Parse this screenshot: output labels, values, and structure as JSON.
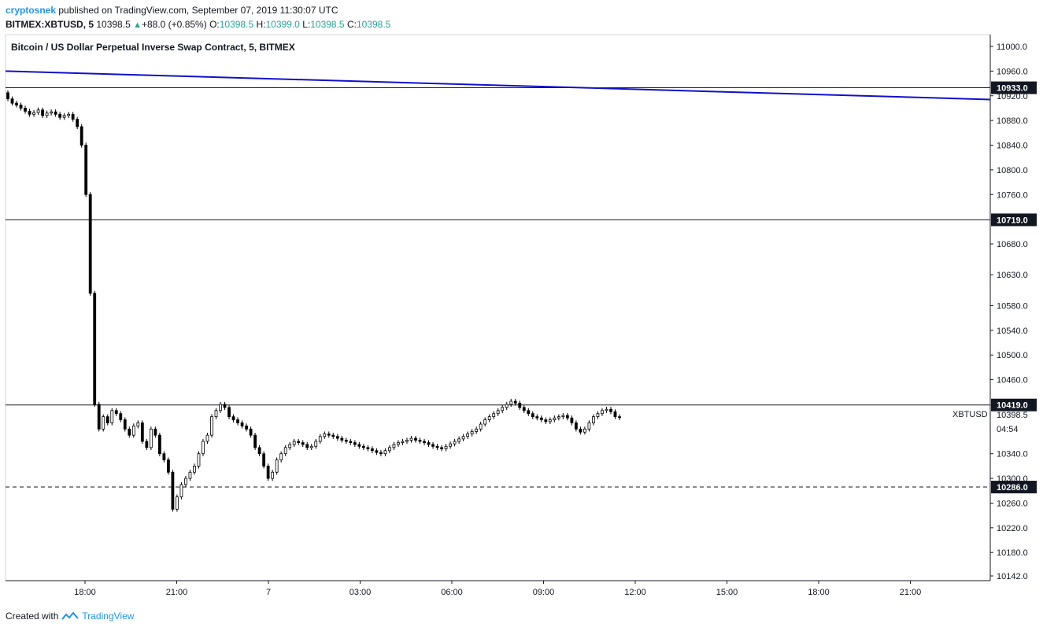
{
  "header": {
    "author": "cryptosnek",
    "published": "published on TradingView.com, September 07, 2019 11:30:07 UTC",
    "symbol": "BITMEX:XBTUSD, 5",
    "last": "10398.5",
    "change": "+88.0 (+0.85%)",
    "o_label": "O:",
    "o_value": "10398.5",
    "h_label": "H:",
    "h_value": "10399.0",
    "l_label": "L:",
    "l_value": "10398.5",
    "c_label": "C:",
    "c_value": "10398.5"
  },
  "footer": {
    "created_with": "Created with",
    "brand": "TradingView"
  },
  "chart_data": {
    "type": "candlestick",
    "title": "Bitcoin / US Dollar Perpetual Inverse Swap Contract, 5, BITMEX",
    "ylim": [
      10142,
      11000
    ],
    "y_ticks": [
      "11000.0",
      "10960.0",
      "10920.0",
      "10880.0",
      "10840.0",
      "10800.0",
      "10760.0",
      "10680.0",
      "10630.0",
      "10580.0",
      "10540.0",
      "10500.0",
      "10460.0",
      "10340.0",
      "10300.0",
      "10260.0",
      "10220.0",
      "10180.0",
      "10142.0"
    ],
    "x_ticks": [
      "18:00",
      "21:00",
      "7",
      "03:00",
      "06:00",
      "09:00",
      "12:00",
      "15:00",
      "18:00",
      "21:00"
    ],
    "price_lines": [
      {
        "label": "10933.0",
        "value": 10933,
        "style": "solid"
      },
      {
        "label": "10719.0",
        "value": 10719,
        "style": "solid"
      },
      {
        "label": "10419.0",
        "value": 10419,
        "style": "solid"
      },
      {
        "label": "10286.0",
        "value": 10286,
        "style": "dashed"
      }
    ],
    "trend_line": {
      "color": "#1010cc",
      "start": 10960,
      "end": 10914
    },
    "last_price_label": {
      "symbol": "XBTUSD",
      "value": "10398.5",
      "countdown": "04:54"
    },
    "candles_close": [
      10915,
      10908,
      10905,
      10900,
      10895,
      10890,
      10893,
      10897,
      10888,
      10892,
      10894,
      10890,
      10885,
      10888,
      10890,
      10882,
      10870,
      10840,
      10760,
      10600,
      10420,
      10380,
      10400,
      10390,
      10410,
      10405,
      10395,
      10380,
      10370,
      10385,
      10390,
      10360,
      10350,
      10380,
      10370,
      10340,
      10330,
      10310,
      10250,
      10270,
      10290,
      10300,
      10310,
      10320,
      10340,
      10360,
      10370,
      10400,
      10410,
      10420,
      10415,
      10400,
      10395,
      10390,
      10385,
      10380,
      10370,
      10350,
      10340,
      10320,
      10300,
      10310,
      10330,
      10340,
      10350,
      10355,
      10360,
      10358,
      10355,
      10350,
      10352,
      10360,
      10368,
      10372,
      10370,
      10368,
      10365,
      10362,
      10360,
      10358,
      10355,
      10352,
      10350,
      10348,
      10345,
      10342,
      10340,
      10345,
      10350,
      10355,
      10358,
      10360,
      10362,
      10365,
      10362,
      10360,
      10358,
      10355,
      10352,
      10350,
      10348,
      10352,
      10356,
      10360,
      10364,
      10368,
      10372,
      10376,
      10380,
      10388,
      10395,
      10400,
      10405,
      10410,
      10415,
      10420,
      10425,
      10422,
      10415,
      10410,
      10405,
      10400,
      10398,
      10395,
      10392,
      10395,
      10398,
      10400,
      10402,
      10398,
      10390,
      10380,
      10375,
      10380,
      10390,
      10400,
      10405,
      10410,
      10412,
      10408,
      10400,
      10398.5
    ]
  }
}
